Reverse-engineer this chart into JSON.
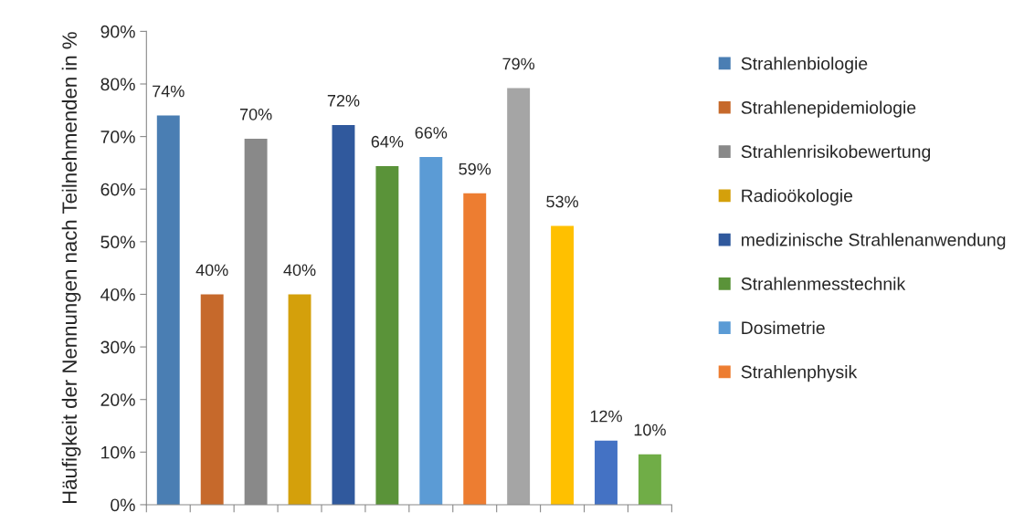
{
  "chart_data": {
    "type": "bar",
    "ylabel": "Häufigkeit der Nennungen nach Teilnehmenden in %",
    "categories": [
      null,
      null,
      null,
      null,
      null,
      null,
      null,
      null,
      null,
      null,
      null,
      null
    ],
    "series": [
      {
        "name": "Strahlenbiologie",
        "color": "#4a7eb3",
        "values": [
          74,
          null,
          null,
          null,
          null,
          null,
          null,
          null,
          null,
          null,
          null,
          null
        ],
        "value_labels": [
          "74%",
          null,
          null,
          null,
          null,
          null,
          null,
          null,
          null,
          null,
          null,
          null
        ]
      },
      {
        "name": "Strahlenepidemiologie",
        "color": "#c6692b",
        "values": [
          null,
          40,
          null,
          null,
          null,
          null,
          null,
          null,
          null,
          null,
          null,
          null
        ],
        "value_labels": [
          null,
          "40%",
          null,
          null,
          null,
          null,
          null,
          null,
          null,
          null,
          null,
          null
        ]
      },
      {
        "name": "Strahlenrisikobewertung",
        "color": "#898989",
        "values": [
          null,
          null,
          69.6,
          null,
          null,
          null,
          null,
          null,
          null,
          null,
          null,
          null
        ],
        "value_labels": [
          null,
          null,
          "70%",
          null,
          null,
          null,
          null,
          null,
          null,
          null,
          null,
          null
        ]
      },
      {
        "name": "Radioökologie",
        "color": "#d4a00b",
        "values": [
          null,
          null,
          null,
          40,
          null,
          null,
          null,
          null,
          null,
          null,
          null,
          null
        ],
        "value_labels": [
          null,
          null,
          null,
          "40%",
          null,
          null,
          null,
          null,
          null,
          null,
          null,
          null
        ]
      },
      {
        "name": "medizinische Strahlenanwendung",
        "color": "#30599d",
        "values": [
          null,
          null,
          null,
          null,
          72.2,
          null,
          null,
          null,
          null,
          null,
          null,
          null
        ],
        "value_labels": [
          null,
          null,
          null,
          null,
          "72%",
          null,
          null,
          null,
          null,
          null,
          null,
          null
        ]
      },
      {
        "name": "Strahlenmesstechnik",
        "color": "#5a9339",
        "values": [
          null,
          null,
          null,
          null,
          null,
          64.4,
          null,
          null,
          null,
          null,
          null,
          null
        ],
        "value_labels": [
          null,
          null,
          null,
          null,
          null,
          "64%",
          null,
          null,
          null,
          null,
          null,
          null
        ]
      },
      {
        "name": "Dosimetrie",
        "color": "#5b9bd5",
        "values": [
          null,
          null,
          null,
          null,
          null,
          null,
          66.1,
          null,
          null,
          null,
          null,
          null
        ],
        "value_labels": [
          null,
          null,
          null,
          null,
          null,
          null,
          "66%",
          null,
          null,
          null,
          null,
          null
        ]
      },
      {
        "name": "Strahlenphysik",
        "color": "#ed7d31",
        "values": [
          null,
          null,
          null,
          null,
          null,
          null,
          null,
          59.2,
          null,
          null,
          null,
          null
        ],
        "value_labels": [
          null,
          null,
          null,
          null,
          null,
          null,
          null,
          "59%",
          null,
          null,
          null,
          null
        ]
      },
      {
        "color": "#a5a5a5",
        "values": [
          null,
          null,
          null,
          null,
          null,
          null,
          null,
          null,
          79.2,
          null,
          null,
          null
        ],
        "value_labels": [
          null,
          null,
          null,
          null,
          null,
          null,
          null,
          null,
          "79%",
          null,
          null,
          null
        ]
      },
      {
        "color": "#ffc000",
        "values": [
          null,
          null,
          null,
          null,
          null,
          null,
          null,
          null,
          null,
          53,
          null,
          null
        ],
        "value_labels": [
          null,
          null,
          null,
          null,
          null,
          null,
          null,
          null,
          null,
          "53%",
          null,
          null
        ]
      },
      {
        "color": "#4472c4",
        "values": [
          null,
          null,
          null,
          null,
          null,
          null,
          null,
          null,
          null,
          null,
          12.2,
          null
        ],
        "value_labels": [
          null,
          null,
          null,
          null,
          null,
          null,
          null,
          null,
          null,
          null,
          "12%",
          null
        ]
      },
      {
        "color": "#70ad47",
        "values": [
          null,
          null,
          null,
          null,
          null,
          null,
          null,
          null,
          null,
          null,
          null,
          9.6
        ],
        "value_labels": [
          null,
          null,
          null,
          null,
          null,
          null,
          null,
          null,
          null,
          null,
          null,
          "10%"
        ]
      }
    ],
    "ylim": [
      0,
      90
    ],
    "yticks": [
      {
        "value": 0,
        "label": "0%"
      },
      {
        "value": 10,
        "label": "10%"
      },
      {
        "value": 20,
        "label": "20%"
      },
      {
        "value": 30,
        "label": "30%"
      },
      {
        "value": 40,
        "label": "40%"
      },
      {
        "value": 50,
        "label": "50%"
      },
      {
        "value": 60,
        "label": "60%"
      },
      {
        "value": 70,
        "label": "70%"
      },
      {
        "value": 80,
        "label": "80%"
      },
      {
        "value": 90,
        "label": "90%"
      }
    ],
    "grid": false,
    "legend": "right"
  }
}
